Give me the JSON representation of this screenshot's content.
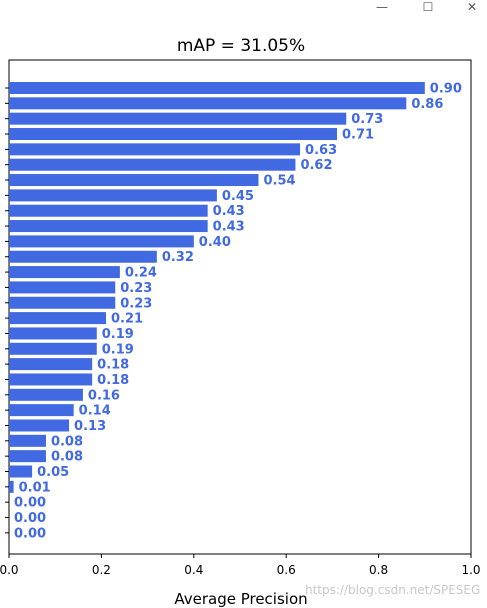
{
  "window": {
    "minimize_icon": "minimize-icon",
    "maximize_icon": "maximize-icon",
    "close_icon": "close-icon"
  },
  "watermark": "https://blog.csdn.net/SPESEG",
  "colors": {
    "bar": "#4169e1",
    "label": "#4169e1",
    "axis": "#000000"
  },
  "chart_data": {
    "type": "bar",
    "orientation": "horizontal",
    "title": "mAP = 31.05%",
    "xlabel": "Average Precision",
    "ylabel": "",
    "xlim": [
      0,
      1
    ],
    "xticks": [
      "0.0",
      "0.2",
      "0.4",
      "0.6",
      "0.8",
      "1.0"
    ],
    "categories": [],
    "values": [
      0.9,
      0.86,
      0.73,
      0.71,
      0.63,
      0.62,
      0.54,
      0.45,
      0.43,
      0.43,
      0.4,
      0.32,
      0.24,
      0.23,
      0.23,
      0.21,
      0.19,
      0.19,
      0.18,
      0.18,
      0.16,
      0.14,
      0.13,
      0.08,
      0.08,
      0.05,
      0.01,
      0.0,
      0.0,
      0.0
    ],
    "labels": [
      "0.90",
      "0.86",
      "0.73",
      "0.71",
      "0.63",
      "0.62",
      "0.54",
      "0.45",
      "0.43",
      "0.43",
      "0.40",
      "0.32",
      "0.24",
      "0.23",
      "0.23",
      "0.21",
      "0.19",
      "0.19",
      "0.18",
      "0.18",
      "0.16",
      "0.14",
      "0.13",
      "0.08",
      "0.08",
      "0.05",
      "0.01",
      "0.00",
      "0.00",
      "0.00"
    ],
    "grid": false,
    "legend": "none"
  }
}
